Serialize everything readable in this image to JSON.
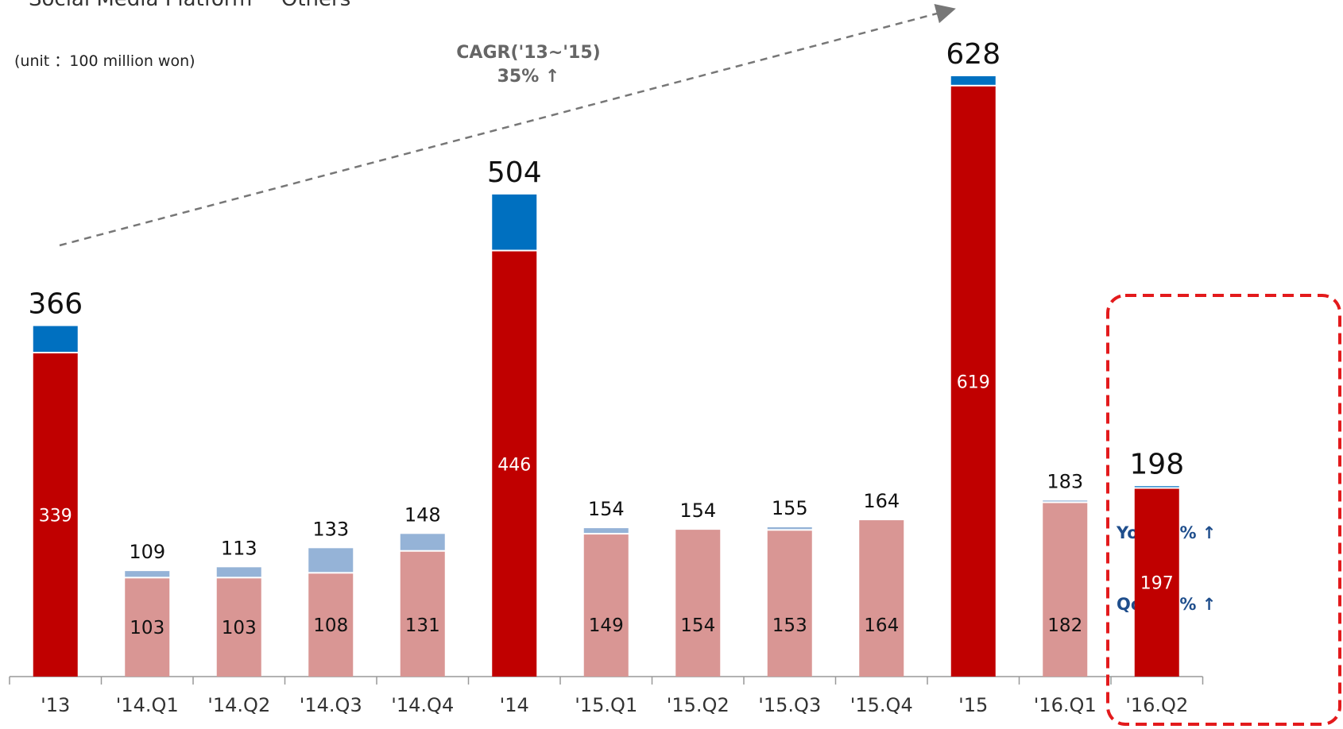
{
  "legend": {
    "items": [
      {
        "label": "Social Media Platform",
        "color": "#c00000"
      },
      {
        "label": "Others",
        "color": "#0070c0"
      }
    ]
  },
  "unit_label": "(unit ：100 million won)",
  "annotation": {
    "cagr_title": "CAGR('13~'15)",
    "cagr_value": "35% ↑",
    "yoy": "YoY 28% ↑",
    "qoq": "QoQ  8% ↑"
  },
  "chart_data": {
    "type": "bar",
    "stacked": true,
    "categories": [
      "'13",
      "'14.Q1",
      "'14.Q2",
      "'14.Q3",
      "'14.Q4",
      "'14",
      "'15.Q1",
      "'15.Q2",
      "'15.Q3",
      "'15.Q4",
      "'15",
      "'16.Q1",
      "'16.Q2"
    ],
    "series": [
      {
        "name": "Social Media Platform",
        "values": [
          339,
          103,
          103,
          108,
          131,
          446,
          149,
          154,
          153,
          164,
          619,
          182,
          197
        ]
      },
      {
        "name": "Others",
        "values": [
          27,
          6,
          10,
          25,
          17,
          58,
          5,
          0,
          2,
          0,
          9,
          1,
          1
        ]
      }
    ],
    "totals": [
      366,
      109,
      113,
      133,
      148,
      504,
      154,
      154,
      155,
      164,
      628,
      183,
      198
    ],
    "annual_categories": [
      "'13",
      "'14",
      "'15",
      "'16.Q2"
    ],
    "highlight_category": "'16.Q2",
    "colors": {
      "annual_main": "#c00000",
      "annual_other": "#0070c0",
      "quarter_main": "#d99694",
      "quarter_other": "#95b3d7",
      "highlight_box": "#e31a1c",
      "trend_arrow": "#777777"
    },
    "ylim": [
      0,
      700
    ],
    "grid": false,
    "legend_position": "top-left"
  }
}
